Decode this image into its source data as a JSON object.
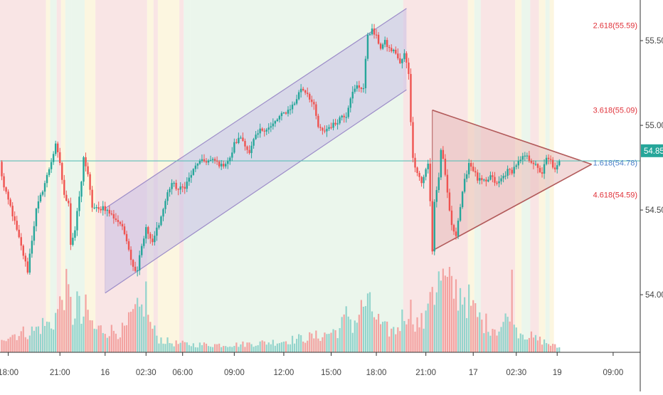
{
  "colors": {
    "up": "#26a69a",
    "down": "#ef5350",
    "up_volume": "#93d4cc",
    "down_volume": "#f3a3a1",
    "bg_red": "#f7dcdc",
    "bg_green": "#e4f3e6",
    "bg_yellow": "#fbf3d6",
    "fib_line": "#5cc0b8",
    "channel_stroke": "#9c8cc8",
    "channel_fill": "#c8bfe6",
    "triangle_stroke": "#b25a5a",
    "triangle_fill": "#e8bcbc",
    "fib_red_text": "#e0323a",
    "fib_blue_text": "#4a7ec8",
    "price_tag_bg": "#26a69a",
    "axis_text": "#444444"
  },
  "chart_data": {
    "type": "candlestick",
    "title": "",
    "xlabel": "",
    "ylabel": "",
    "ylim": [
      53.66,
      55.74
    ],
    "y_ticks": [
      54.0,
      54.5,
      55.0,
      55.5
    ],
    "y_tick_labels": [
      "54.00",
      "54.50",
      "55.00",
      "55.50"
    ],
    "x_tick_labels": [
      "18:00",
      "21:00",
      "16",
      "02:30",
      "06:00",
      "09:00",
      "12:00",
      "15:00",
      "18:00",
      "21:00",
      "17",
      "02:30",
      "19",
      "09:00"
    ],
    "x_tick_index": [
      4,
      28,
      49,
      68,
      85,
      109,
      132,
      154,
      175,
      198,
      220,
      240,
      259,
      285
    ],
    "bar_count": 298,
    "last_price": "54.85",
    "last_price_value": 54.85,
    "fib_levels": [
      {
        "label": "2.618(55.59)",
        "value": 55.59,
        "color": "red"
      },
      {
        "label": "3.618(55.09)",
        "value": 55.09,
        "color": "red"
      },
      {
        "label": "1.618(54.78)",
        "value": 54.78,
        "color": "blue"
      },
      {
        "label": "4.618(54.59)",
        "value": 54.59,
        "color": "red"
      }
    ],
    "fib_line_value": 54.79,
    "channel": {
      "upper_start": [
        49,
        54.51
      ],
      "upper_end": [
        189,
        55.69
      ],
      "lower_start": [
        49,
        54.01
      ],
      "lower_end": [
        189,
        55.21
      ]
    },
    "triangle": {
      "apex": [
        275,
        54.77
      ],
      "upper_start": [
        201,
        55.09
      ],
      "lower_start": [
        201,
        54.26
      ]
    },
    "background_zones": [
      {
        "start": 0,
        "end": 22,
        "color": "red"
      },
      {
        "start": 22,
        "end": 24,
        "color": "yellow"
      },
      {
        "start": 24,
        "end": 27,
        "color": "green"
      },
      {
        "start": 27,
        "end": 29,
        "color": "red"
      },
      {
        "start": 29,
        "end": 31,
        "color": "yellow"
      },
      {
        "start": 31,
        "end": 34,
        "color": "green"
      },
      {
        "start": 34,
        "end": 40,
        "color": "green"
      },
      {
        "start": 40,
        "end": 45,
        "color": "yellow"
      },
      {
        "start": 45,
        "end": 69,
        "color": "red"
      },
      {
        "start": 69,
        "end": 72,
        "color": "yellow"
      },
      {
        "start": 72,
        "end": 74,
        "color": "red"
      },
      {
        "start": 74,
        "end": 84,
        "color": "yellow"
      },
      {
        "start": 84,
        "end": 86,
        "color": "red"
      },
      {
        "start": 86,
        "end": 89,
        "color": "green"
      },
      {
        "start": 89,
        "end": 188,
        "color": "green"
      },
      {
        "start": 188,
        "end": 218,
        "color": "red"
      },
      {
        "start": 218,
        "end": 221,
        "color": "yellow"
      },
      {
        "start": 221,
        "end": 224,
        "color": "green"
      },
      {
        "start": 224,
        "end": 240,
        "color": "red"
      },
      {
        "start": 240,
        "end": 243,
        "color": "yellow"
      },
      {
        "start": 243,
        "end": 247,
        "color": "green"
      },
      {
        "start": 247,
        "end": 251,
        "color": "red"
      },
      {
        "start": 251,
        "end": 254,
        "color": "yellow"
      },
      {
        "start": 254,
        "end": 256,
        "color": "green"
      },
      {
        "start": 256,
        "end": 258,
        "color": "yellow"
      },
      {
        "start": 258,
        "end": 298,
        "color": "none"
      }
    ],
    "keypoints": [
      [
        0,
        54.78
      ],
      [
        2,
        54.63
      ],
      [
        5,
        54.52
      ],
      [
        9,
        54.33
      ],
      [
        13,
        54.14
      ],
      [
        14,
        54.24
      ],
      [
        17,
        54.5
      ],
      [
        22,
        54.7
      ],
      [
        26,
        54.88
      ],
      [
        28,
        54.78
      ],
      [
        30,
        54.58
      ],
      [
        32,
        54.55
      ],
      [
        33,
        54.3
      ],
      [
        35,
        54.38
      ],
      [
        37,
        54.58
      ],
      [
        38,
        54.66
      ],
      [
        39,
        54.82
      ],
      [
        41,
        54.7
      ],
      [
        43,
        54.52
      ],
      [
        46,
        54.5
      ],
      [
        48,
        54.52
      ],
      [
        52,
        54.47
      ],
      [
        56,
        54.42
      ],
      [
        59,
        54.33
      ],
      [
        62,
        54.16
      ],
      [
        64,
        54.15
      ],
      [
        65,
        54.24
      ],
      [
        68,
        54.39
      ],
      [
        71,
        54.3
      ],
      [
        73,
        54.39
      ],
      [
        75,
        54.46
      ],
      [
        78,
        54.6
      ],
      [
        80,
        54.66
      ],
      [
        83,
        54.62
      ],
      [
        86,
        54.64
      ],
      [
        89,
        54.71
      ],
      [
        92,
        54.78
      ],
      [
        96,
        54.79
      ],
      [
        100,
        54.79
      ],
      [
        103,
        54.76
      ],
      [
        107,
        54.8
      ],
      [
        109,
        54.89
      ],
      [
        112,
        54.93
      ],
      [
        114,
        54.89
      ],
      [
        116,
        54.83
      ],
      [
        118,
        54.91
      ],
      [
        121,
        54.97
      ],
      [
        126,
        54.99
      ],
      [
        130,
        55.05
      ],
      [
        134,
        55.09
      ],
      [
        137,
        55.13
      ],
      [
        140,
        55.22
      ],
      [
        143,
        55.19
      ],
      [
        146,
        55.11
      ],
      [
        148,
        54.99
      ],
      [
        150,
        54.96
      ],
      [
        153,
        54.99
      ],
      [
        156,
        55.01
      ],
      [
        159,
        55.06
      ],
      [
        161,
        55.06
      ],
      [
        163,
        55.17
      ],
      [
        166,
        55.23
      ],
      [
        169,
        55.22
      ],
      [
        171,
        55.54
      ],
      [
        173,
        55.56
      ],
      [
        175,
        55.52
      ],
      [
        177,
        55.46
      ],
      [
        179,
        55.49
      ],
      [
        181,
        55.45
      ],
      [
        184,
        55.43
      ],
      [
        186,
        55.36
      ],
      [
        188,
        55.42
      ],
      [
        190,
        55.31
      ],
      [
        191,
        55.03
      ],
      [
        192,
        54.8
      ],
      [
        194,
        54.73
      ],
      [
        196,
        54.66
      ],
      [
        197,
        54.7
      ],
      [
        199,
        54.77
      ],
      [
        200,
        54.55
      ],
      [
        201,
        54.26
      ],
      [
        202,
        54.55
      ],
      [
        204,
        54.69
      ],
      [
        205,
        54.86
      ],
      [
        206,
        54.79
      ],
      [
        208,
        54.6
      ],
      [
        210,
        54.4
      ],
      [
        212,
        54.36
      ],
      [
        214,
        54.52
      ],
      [
        216,
        54.67
      ],
      [
        218,
        54.78
      ],
      [
        220,
        54.74
      ],
      [
        222,
        54.68
      ],
      [
        224,
        54.67
      ],
      [
        226,
        54.66
      ],
      [
        228,
        54.7
      ],
      [
        231,
        54.65
      ],
      [
        234,
        54.7
      ],
      [
        236,
        54.73
      ],
      [
        238,
        54.73
      ],
      [
        240,
        54.77
      ],
      [
        242,
        54.79
      ],
      [
        244,
        54.82
      ],
      [
        246,
        54.8
      ],
      [
        248,
        54.78
      ],
      [
        250,
        54.74
      ],
      [
        252,
        54.72
      ],
      [
        254,
        54.8
      ],
      [
        256,
        54.79
      ],
      [
        258,
        54.73
      ],
      [
        260,
        54.78
      ]
    ],
    "volume_keypoints": [
      [
        0,
        0.2
      ],
      [
        8,
        0.24
      ],
      [
        16,
        0.28
      ],
      [
        20,
        0.36
      ],
      [
        24,
        0.36
      ],
      [
        28,
        0.6
      ],
      [
        30,
        0.85
      ],
      [
        32,
        0.72
      ],
      [
        34,
        0.45
      ],
      [
        36,
        0.7
      ],
      [
        38,
        0.4
      ],
      [
        40,
        0.55
      ],
      [
        44,
        0.3
      ],
      [
        48,
        0.3
      ],
      [
        52,
        0.28
      ],
      [
        58,
        0.28
      ],
      [
        62,
        0.48
      ],
      [
        66,
        0.55
      ],
      [
        68,
        0.75
      ],
      [
        70,
        0.35
      ],
      [
        74,
        0.18
      ],
      [
        80,
        0.12
      ],
      [
        90,
        0.1
      ],
      [
        100,
        0.1
      ],
      [
        110,
        0.1
      ],
      [
        120,
        0.12
      ],
      [
        130,
        0.14
      ],
      [
        140,
        0.18
      ],
      [
        150,
        0.22
      ],
      [
        158,
        0.3
      ],
      [
        162,
        0.52
      ],
      [
        164,
        0.35
      ],
      [
        170,
        0.65
      ],
      [
        174,
        0.5
      ],
      [
        178,
        0.3
      ],
      [
        184,
        0.28
      ],
      [
        190,
        0.6
      ],
      [
        194,
        0.38
      ],
      [
        198,
        0.4
      ],
      [
        200,
        1.0
      ],
      [
        202,
        0.8
      ],
      [
        205,
        0.95
      ],
      [
        208,
        0.85
      ],
      [
        212,
        0.8
      ],
      [
        216,
        0.75
      ],
      [
        220,
        0.55
      ],
      [
        224,
        0.4
      ],
      [
        228,
        0.35
      ],
      [
        232,
        0.3
      ],
      [
        236,
        0.45
      ],
      [
        238,
        0.85
      ],
      [
        240,
        0.3
      ],
      [
        244,
        0.25
      ],
      [
        248,
        0.18
      ],
      [
        252,
        0.15
      ],
      [
        256,
        0.1
      ],
      [
        260,
        0.06
      ]
    ]
  }
}
